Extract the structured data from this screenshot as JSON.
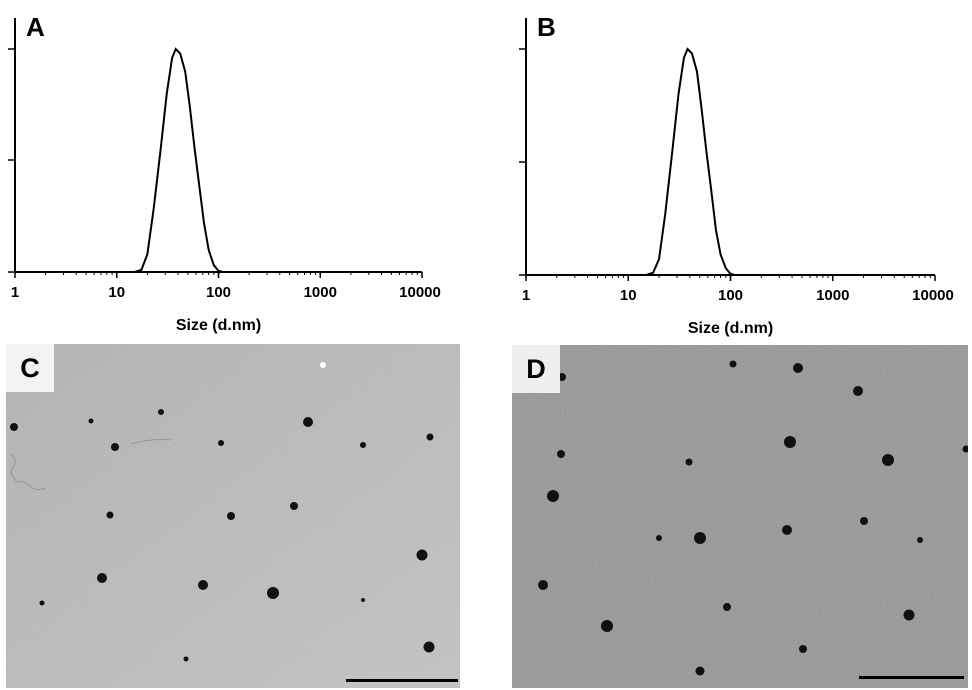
{
  "chart_data": [
    {
      "type": "line",
      "panel_label": "A",
      "xscale": "log",
      "xlim": [
        1,
        10000
      ],
      "ylim": [
        0,
        1
      ],
      "xlabel": "Size (d.nm)",
      "ylabel": "",
      "xticks": [
        "1",
        "10",
        "100",
        "1000",
        "10000"
      ],
      "series": [
        {
          "x": [
            1,
            10,
            15,
            17.5,
            20,
            23,
            27,
            31,
            35,
            38,
            42,
            47,
            52,
            58,
            65,
            72,
            80,
            90,
            100,
            110,
            1000,
            10000
          ],
          "y": [
            0,
            0,
            0,
            0.01,
            0.08,
            0.28,
            0.55,
            0.8,
            0.96,
            1.0,
            0.98,
            0.9,
            0.75,
            0.56,
            0.38,
            0.22,
            0.1,
            0.03,
            0.005,
            0,
            0,
            0
          ]
        }
      ]
    },
    {
      "type": "line",
      "panel_label": "B",
      "xscale": "log",
      "xlim": [
        1,
        10000
      ],
      "ylim": [
        0,
        1
      ],
      "xlabel": "Size (d.nm)",
      "ylabel": "",
      "xticks": [
        "1",
        "10",
        "100",
        "1000",
        "10000"
      ],
      "series": [
        {
          "x": [
            1,
            10,
            15,
            17.5,
            20,
            23,
            27,
            31,
            35,
            38,
            42,
            47,
            52,
            58,
            65,
            72,
            80,
            90,
            100,
            110,
            1000,
            10000
          ],
          "y": [
            0,
            0,
            0,
            0.01,
            0.07,
            0.27,
            0.55,
            0.8,
            0.96,
            1.0,
            0.98,
            0.9,
            0.74,
            0.55,
            0.37,
            0.2,
            0.09,
            0.03,
            0.005,
            0,
            0,
            0
          ]
        }
      ]
    }
  ],
  "images": [
    {
      "panel_label": "C",
      "description": "TEM micrograph with dispersed dark spherical nanoparticles",
      "background": "#b9b9b9",
      "particle_color": "#111111",
      "scale_bar": true
    },
    {
      "panel_label": "D",
      "description": "TEM micrograph with grainy background and dark nanoparticles",
      "background": "#8e8e8e",
      "particle_color": "#111111",
      "scale_bar": true
    }
  ]
}
